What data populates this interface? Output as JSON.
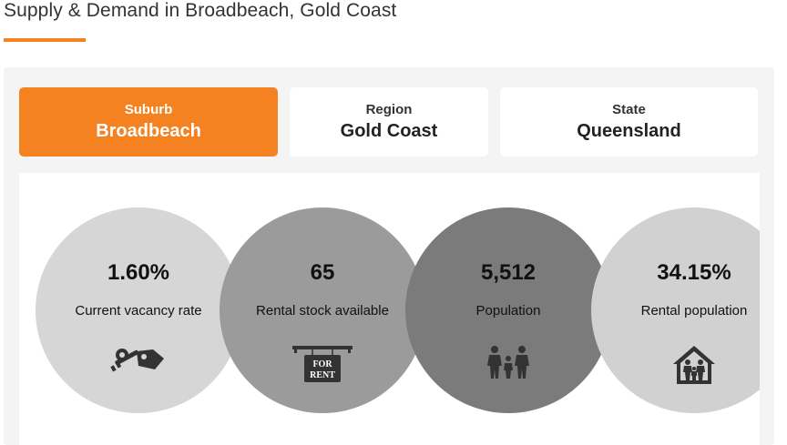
{
  "page": {
    "title": "Supply & Demand in Broadbeach, Gold Coast"
  },
  "tabs": [
    {
      "label": "Suburb",
      "value": "Broadbeach",
      "active": true
    },
    {
      "label": "Region",
      "value": "Gold Coast",
      "active": false
    },
    {
      "label": "State",
      "value": "Queensland",
      "active": false
    }
  ],
  "stats": [
    {
      "value": "1.60%",
      "label": "Current vacancy rate",
      "icon": "keys-icon"
    },
    {
      "value": "65",
      "label": "Rental stock available",
      "icon": "for-rent-sign-icon",
      "sign_text_1": "FOR",
      "sign_text_2": "RENT"
    },
    {
      "value": "5,512",
      "label": "Population",
      "icon": "family-icon"
    },
    {
      "value": "34.15%",
      "label": "Rental population",
      "icon": "house-family-icon"
    }
  ],
  "colors": {
    "accent": "#f58220",
    "circle_1": "#d6d6d6",
    "circle_2": "#9b9b9b",
    "circle_3": "#7b7b7b",
    "circle_4": "#d1d1d1",
    "icon": "#333333"
  }
}
